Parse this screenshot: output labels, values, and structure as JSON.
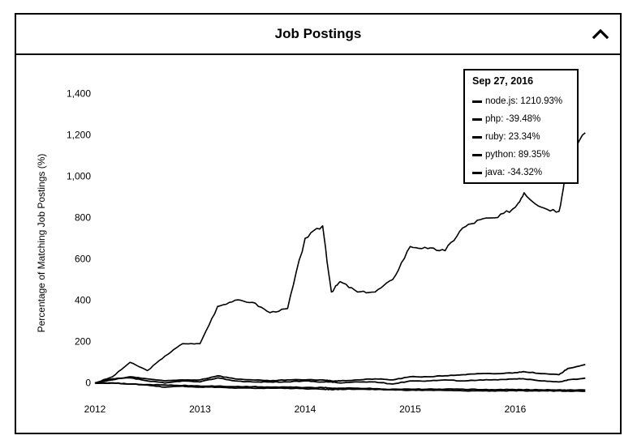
{
  "panel": {
    "title": "Job Postings"
  },
  "icons": {
    "collapse": "chevron-up-icon"
  },
  "tooltip": {
    "date": "Sep 27, 2016",
    "items": [
      {
        "name": "node.js",
        "value": "1210.93%"
      },
      {
        "name": "php",
        "value": "-39.48%"
      },
      {
        "name": "ruby",
        "value": "23.34%"
      },
      {
        "name": "python",
        "value": "89.35%"
      },
      {
        "name": "java",
        "value": "-34.32%"
      }
    ]
  },
  "chart_data": {
    "type": "line",
    "title": "",
    "xlabel": "",
    "ylabel": "Percentage of Matching Job Postings (%)",
    "x_ticks": [
      "2012",
      "2013",
      "2014",
      "2015",
      "2016"
    ],
    "y_ticks": [
      "0",
      "200",
      "400",
      "600",
      "800",
      "1,000",
      "1,200",
      "1,400"
    ],
    "xlim": [
      "2012-01",
      "2016-09"
    ],
    "ylim": [
      -60,
      1480
    ],
    "grid": false,
    "legend": "top-right tooltip",
    "x": [
      "2012-01",
      "2012-03",
      "2012-05",
      "2012-07",
      "2012-09",
      "2012-11",
      "2013-01",
      "2013-03",
      "2013-05",
      "2013-07",
      "2013-09",
      "2013-11",
      "2014-01",
      "2014-03",
      "2014-04",
      "2014-05",
      "2014-07",
      "2014-09",
      "2014-11",
      "2015-01",
      "2015-03",
      "2015-05",
      "2015-07",
      "2015-09",
      "2015-11",
      "2016-01",
      "2016-02",
      "2016-04",
      "2016-06",
      "2016-07",
      "2016-09"
    ],
    "series": [
      {
        "name": "node.js",
        "values": [
          0,
          30,
          100,
          60,
          130,
          190,
          190,
          370,
          400,
          390,
          340,
          360,
          700,
          760,
          440,
          490,
          440,
          440,
          500,
          660,
          650,
          640,
          750,
          790,
          800,
          850,
          920,
          850,
          830,
          1080,
          1210
        ]
      },
      {
        "name": "php",
        "values": [
          0,
          0,
          -5,
          -10,
          -20,
          -15,
          -20,
          -20,
          -25,
          -25,
          -25,
          -25,
          -28,
          -30,
          -32,
          -30,
          -30,
          -32,
          -33,
          -35,
          -35,
          -36,
          -38,
          -38,
          -38,
          -38,
          -38,
          -38,
          -38,
          -39,
          -39.48
        ]
      },
      {
        "name": "ruby",
        "values": [
          0,
          20,
          25,
          10,
          0,
          10,
          5,
          25,
          10,
          5,
          5,
          5,
          10,
          5,
          5,
          0,
          5,
          5,
          -5,
          10,
          10,
          15,
          10,
          15,
          15,
          20,
          20,
          10,
          5,
          15,
          23.34
        ]
      },
      {
        "name": "python",
        "values": [
          0,
          15,
          30,
          20,
          10,
          15,
          15,
          35,
          20,
          15,
          10,
          15,
          15,
          15,
          10,
          10,
          15,
          20,
          15,
          30,
          30,
          35,
          40,
          45,
          45,
          50,
          55,
          45,
          40,
          70,
          89.35
        ]
      },
      {
        "name": "java",
        "values": [
          0,
          0,
          -5,
          -8,
          -10,
          -12,
          -15,
          -15,
          -18,
          -18,
          -20,
          -20,
          -22,
          -22,
          -25,
          -25,
          -25,
          -28,
          -30,
          -30,
          -30,
          -30,
          -30,
          -32,
          -32,
          -32,
          -33,
          -33,
          -33,
          -34,
          -34.32
        ]
      }
    ]
  }
}
